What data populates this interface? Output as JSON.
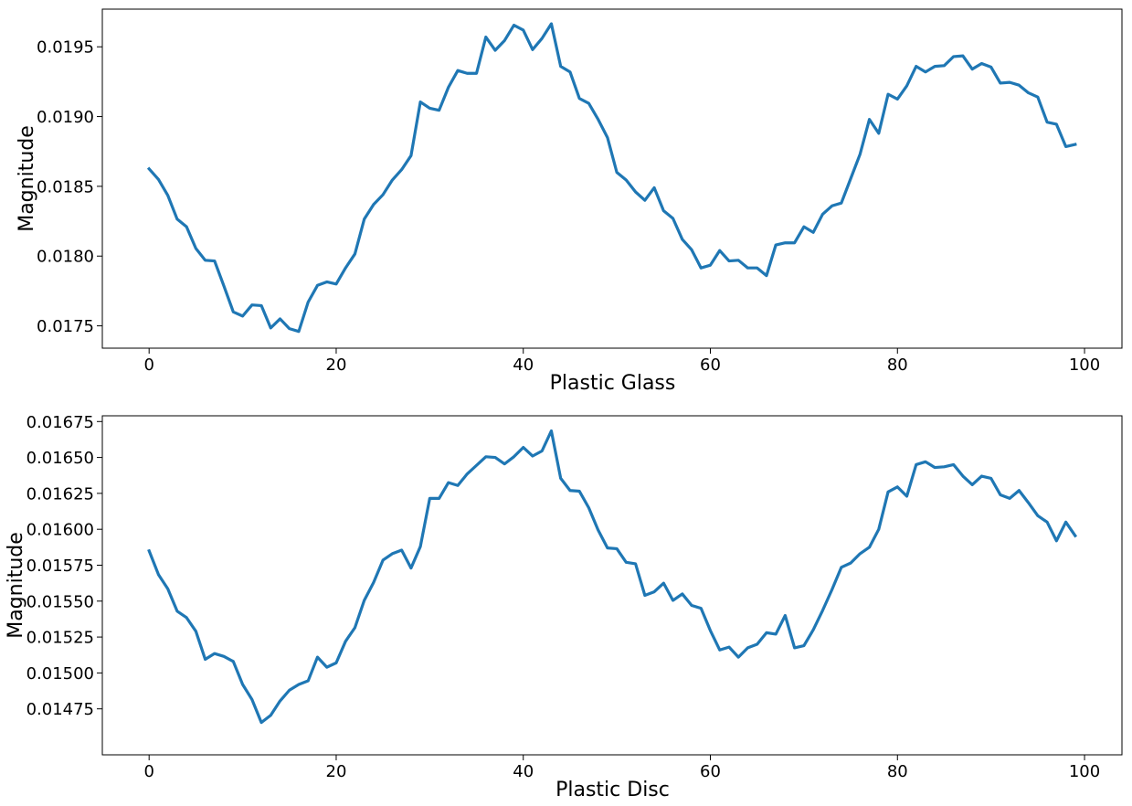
{
  "chart_data": [
    {
      "type": "line",
      "xlabel": "Plastic Glass",
      "ylabel": "Magnitude",
      "xlim": [
        -5,
        104
      ],
      "ylim": [
        0.01734,
        0.01977
      ],
      "xticks": [
        0,
        20,
        40,
        60,
        80,
        100
      ],
      "yticks": [
        0.0175,
        0.018,
        0.0185,
        0.019,
        0.0195
      ],
      "ytick_labels": [
        "0.0175",
        "0.0180",
        "0.0185",
        "0.0190",
        "0.0195"
      ],
      "color": "#1f77b4",
      "grid": false,
      "series": [
        {
          "x": [
            0,
            1,
            2,
            3,
            4,
            5,
            6,
            7,
            8,
            9,
            10,
            11,
            12,
            13,
            14,
            15,
            16,
            17,
            18,
            19,
            20,
            21,
            22,
            23,
            24,
            25,
            26,
            27,
            28,
            29,
            30,
            31,
            32,
            33,
            34,
            35,
            36,
            37,
            38,
            39,
            40,
            41,
            42,
            43,
            44,
            45,
            46,
            47,
            48,
            49,
            50,
            51,
            52,
            53,
            54,
            55,
            56,
            57,
            58,
            59,
            60,
            61,
            62,
            63,
            64,
            65,
            66,
            67,
            68,
            69,
            70,
            71,
            72,
            73,
            74,
            75,
            76,
            77,
            78,
            79,
            80,
            81,
            82,
            83,
            84,
            85,
            86,
            87,
            88,
            89,
            90,
            91,
            92,
            93,
            94,
            95,
            96,
            97,
            98,
            99
          ],
          "values": [
            0.018625,
            0.01855,
            0.018435,
            0.018265,
            0.01821,
            0.018055,
            0.01797,
            0.017965,
            0.017785,
            0.0176,
            0.01757,
            0.01765,
            0.017645,
            0.017485,
            0.01755,
            0.01748,
            0.01746,
            0.01767,
            0.01779,
            0.017815,
            0.0178,
            0.017915,
            0.018015,
            0.018265,
            0.01837,
            0.01844,
            0.018545,
            0.01862,
            0.01872,
            0.019105,
            0.01906,
            0.019045,
            0.01921,
            0.01933,
            0.01931,
            0.01931,
            0.01957,
            0.019475,
            0.019545,
            0.019655,
            0.01962,
            0.01948,
            0.01956,
            0.019665,
            0.01936,
            0.01932,
            0.01913,
            0.019095,
            0.01898,
            0.01885,
            0.0186,
            0.018545,
            0.01846,
            0.0184,
            0.01849,
            0.018325,
            0.01827,
            0.01812,
            0.018045,
            0.017915,
            0.017935,
            0.01804,
            0.017965,
            0.01797,
            0.017915,
            0.017915,
            0.01786,
            0.01808,
            0.018095,
            0.018095,
            0.01821,
            0.01817,
            0.0183,
            0.01836,
            0.01838,
            0.018555,
            0.01873,
            0.01898,
            0.01888,
            0.01916,
            0.019125,
            0.01922,
            0.01936,
            0.01932,
            0.01936,
            0.019365,
            0.01943,
            0.019435,
            0.01934,
            0.01938,
            0.019355,
            0.01924,
            0.019245,
            0.019225,
            0.01917,
            0.01914,
            0.01896,
            0.018945,
            0.018785,
            0.0188
          ]
        }
      ]
    },
    {
      "type": "line",
      "xlabel": "Plastic Disc",
      "ylabel": "Magnitude",
      "xlim": [
        -5,
        104
      ],
      "ylim": [
        0.01443,
        0.01679
      ],
      "xticks": [
        0,
        20,
        40,
        60,
        80,
        100
      ],
      "yticks": [
        0.01475,
        0.015,
        0.01525,
        0.0155,
        0.01575,
        0.016,
        0.01625,
        0.0165,
        0.01675
      ],
      "ytick_labels": [
        "0.01475",
        "0.01500",
        "0.01525",
        "0.01550",
        "0.01575",
        "0.01600",
        "0.01625",
        "0.01650",
        "0.01675"
      ],
      "color": "#1f77b4",
      "grid": false,
      "series": [
        {
          "x": [
            0,
            1,
            2,
            3,
            4,
            5,
            6,
            7,
            8,
            9,
            10,
            11,
            12,
            13,
            14,
            15,
            16,
            17,
            18,
            19,
            20,
            21,
            22,
            23,
            24,
            25,
            26,
            27,
            28,
            29,
            30,
            31,
            32,
            33,
            34,
            35,
            36,
            37,
            38,
            39,
            40,
            41,
            42,
            43,
            44,
            45,
            46,
            47,
            48,
            49,
            50,
            51,
            52,
            53,
            54,
            55,
            56,
            57,
            58,
            59,
            60,
            61,
            62,
            63,
            64,
            65,
            66,
            67,
            68,
            69,
            70,
            71,
            72,
            73,
            74,
            75,
            76,
            77,
            78,
            79,
            80,
            81,
            82,
            83,
            84,
            85,
            86,
            87,
            88,
            89,
            90,
            91,
            92,
            93,
            94,
            95,
            96,
            97,
            98,
            99
          ],
          "values": [
            0.01585,
            0.015685,
            0.015585,
            0.01543,
            0.015385,
            0.01529,
            0.015095,
            0.015135,
            0.015115,
            0.01508,
            0.01492,
            0.014815,
            0.014655,
            0.014705,
            0.014805,
            0.01488,
            0.01492,
            0.014945,
            0.01511,
            0.01504,
            0.01507,
            0.01522,
            0.015315,
            0.015505,
            0.01563,
            0.015785,
            0.01583,
            0.015855,
            0.01573,
            0.01588,
            0.016215,
            0.016215,
            0.016325,
            0.016305,
            0.016385,
            0.016445,
            0.016505,
            0.0165,
            0.016455,
            0.016505,
            0.01657,
            0.01651,
            0.016545,
            0.016685,
            0.016355,
            0.01627,
            0.016265,
            0.01615,
            0.015995,
            0.01587,
            0.015865,
            0.01577,
            0.01576,
            0.01554,
            0.015565,
            0.015625,
            0.015505,
            0.01555,
            0.01547,
            0.01545,
            0.015295,
            0.01516,
            0.01518,
            0.01511,
            0.015175,
            0.0152,
            0.01528,
            0.01527,
            0.0154,
            0.015175,
            0.01519,
            0.0153,
            0.015435,
            0.01558,
            0.015735,
            0.015765,
            0.01583,
            0.015875,
            0.016,
            0.01626,
            0.016295,
            0.01623,
            0.01645,
            0.01647,
            0.01643,
            0.016435,
            0.01645,
            0.01637,
            0.01631,
            0.01637,
            0.016355,
            0.01624,
            0.016215,
            0.01627,
            0.016185,
            0.016095,
            0.01605,
            0.01592,
            0.01605,
            0.015955
          ]
        }
      ]
    }
  ]
}
